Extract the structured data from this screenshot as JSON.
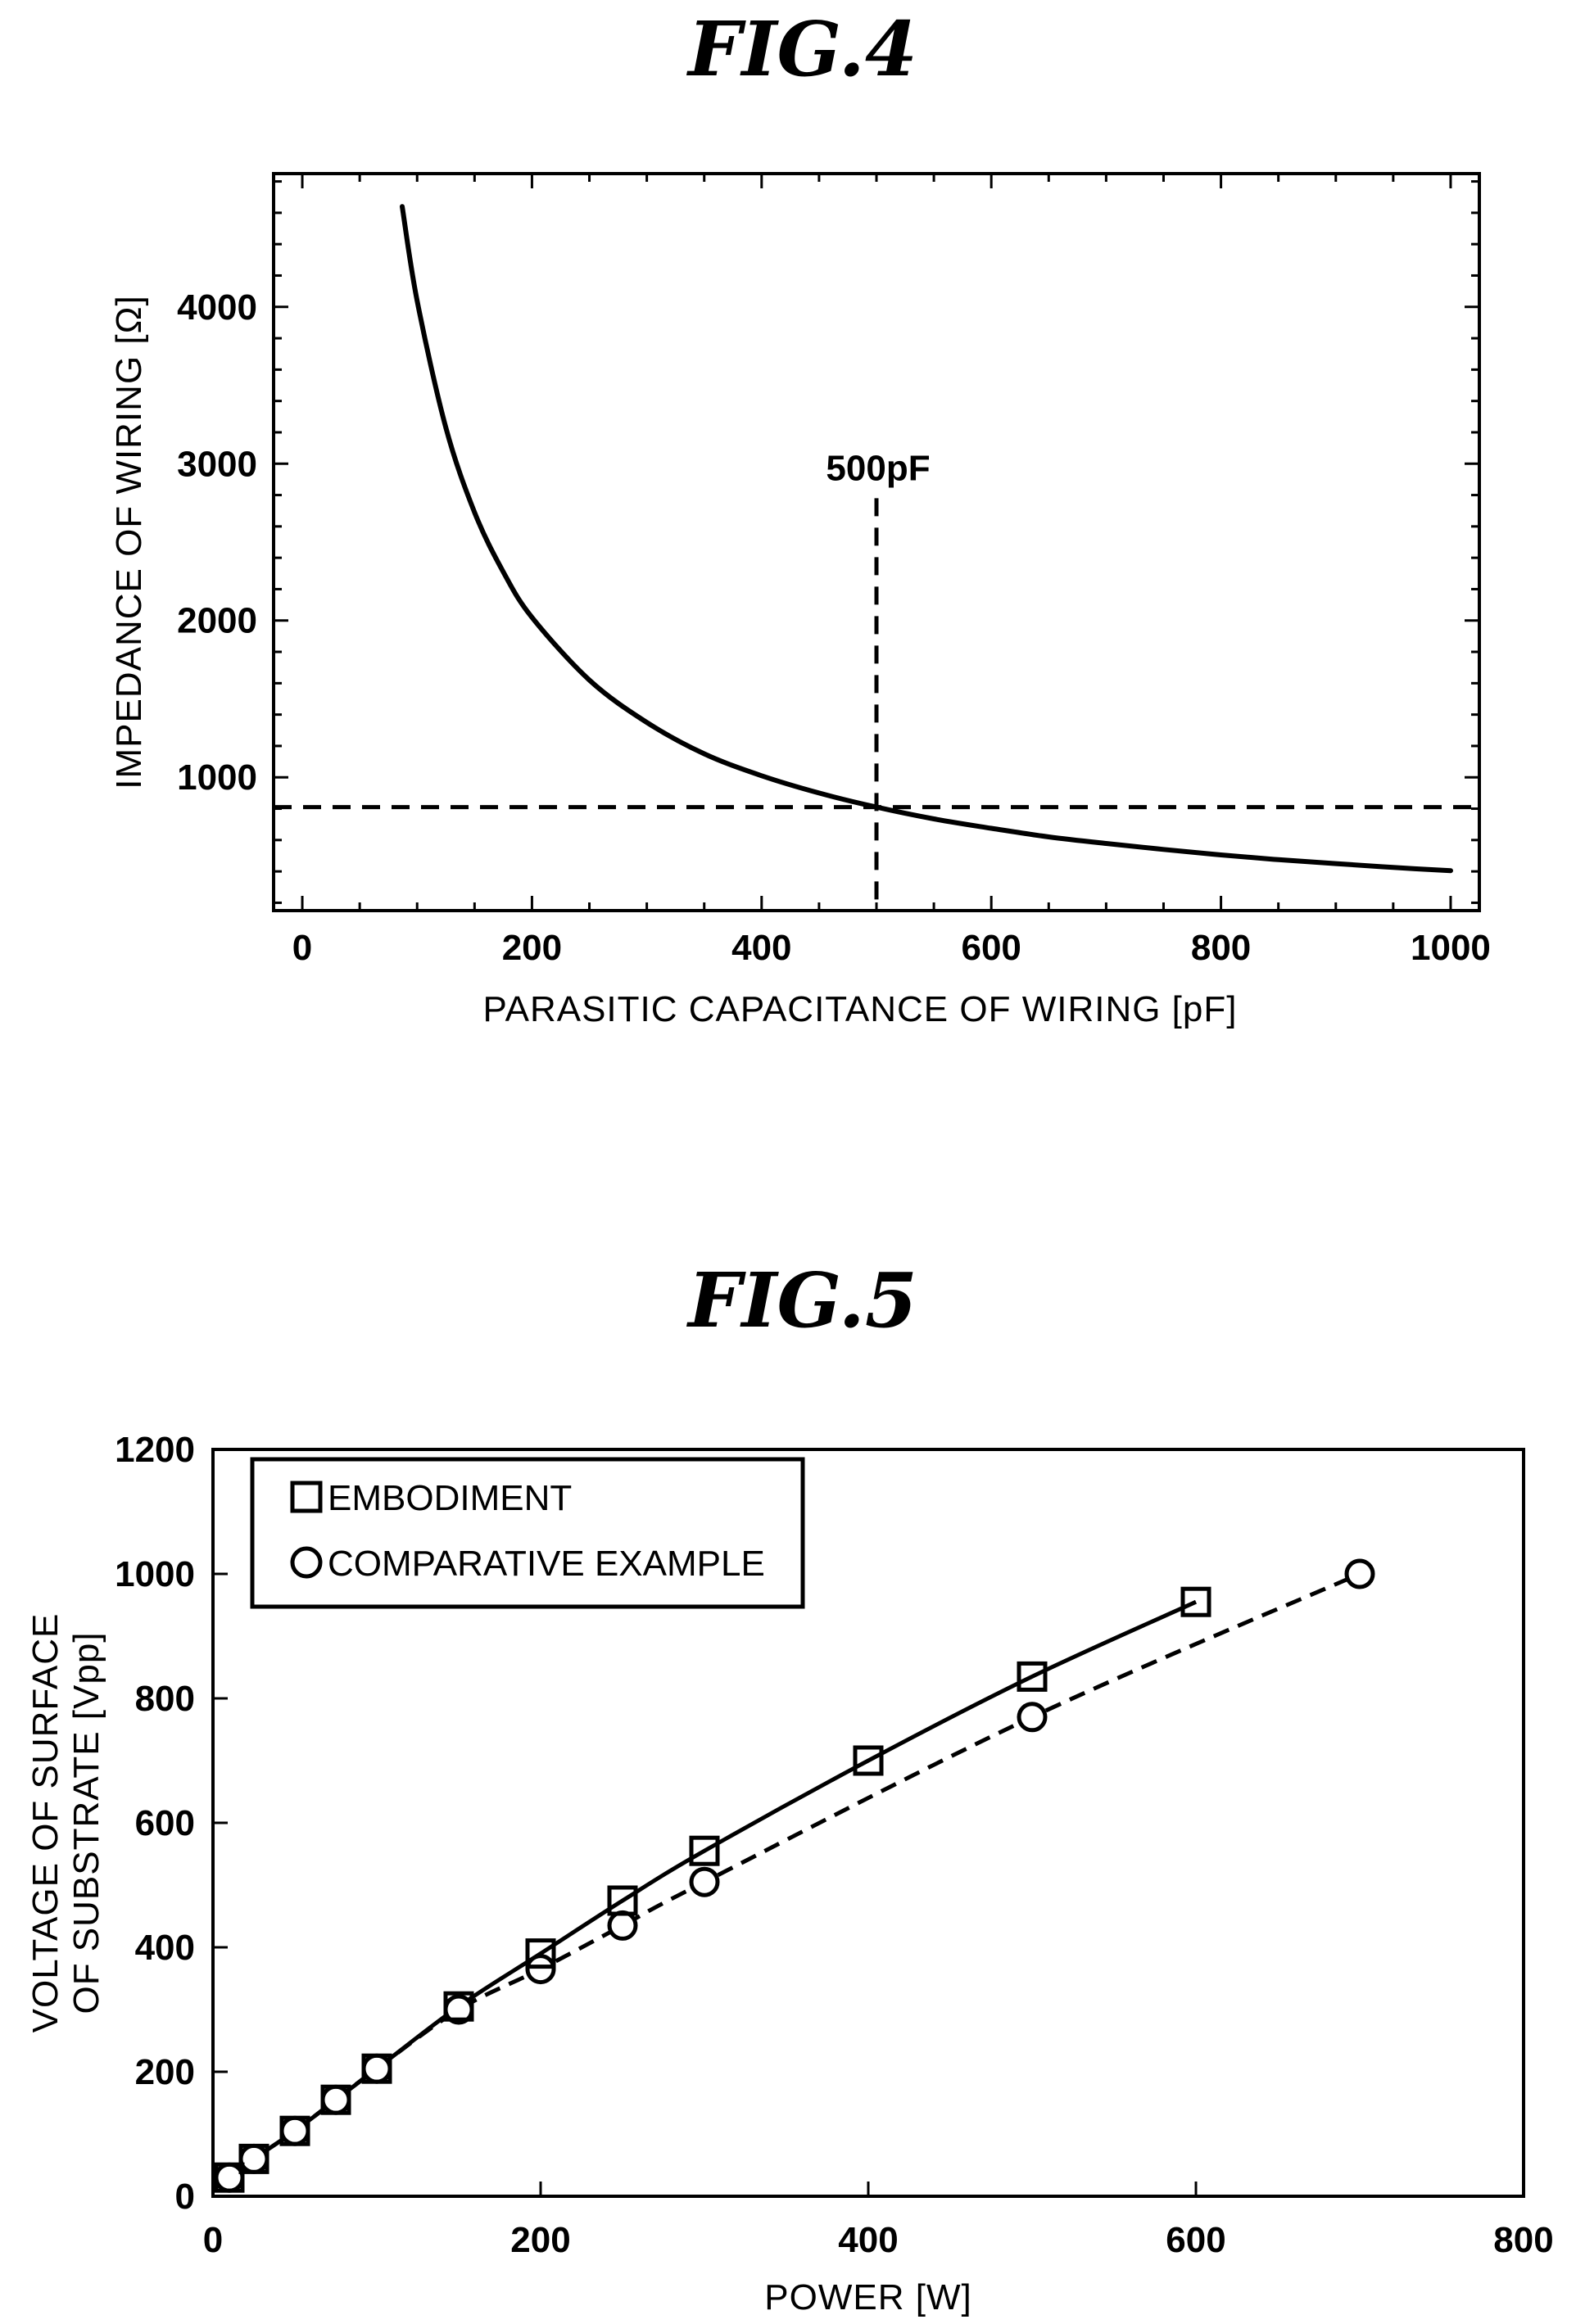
{
  "chart_data": [
    {
      "type": "line",
      "title": "FIG.4",
      "xlabel": "PARASITIC CAPACITANCE OF WIRING [pF]",
      "ylabel": "IMPEDANCE OF WIRING [Ω]",
      "xlim": [
        -25,
        1025
      ],
      "ylim": [
        150,
        4850
      ],
      "xticks": [
        0,
        200,
        400,
        600,
        800,
        1000
      ],
      "yticks": [
        1000,
        2000,
        3000,
        4000
      ],
      "grid": false,
      "series": [
        {
          "style": "solid",
          "x": [
            87,
            100,
            125,
            150,
            175,
            200,
            250,
            300,
            350,
            400,
            450,
            500,
            550,
            600,
            650,
            700,
            750,
            800,
            850,
            900,
            950,
            1000
          ],
          "y": [
            4640,
            4040,
            3230,
            2690,
            2310,
            2020,
            1620,
            1350,
            1150,
            1010,
            900,
            810,
            735,
            675,
            620,
            578,
            540,
            505,
            475,
            450,
            425,
            405
          ]
        }
      ],
      "reference_lines": [
        {
          "orientation": "vertical",
          "style": "dashed",
          "x": 500,
          "y_range": [
            150,
            2780
          ],
          "label": "500pF"
        },
        {
          "orientation": "horizontal",
          "style": "dashed",
          "y": 810
        }
      ]
    },
    {
      "type": "line",
      "title": "FIG.5",
      "xlabel": "POWER [W]",
      "ylabel": "VOLTAGE OF SURFACE OF SUBSTRATE [Vpp]",
      "ylabel_lines": [
        "VOLTAGE OF SURFACE",
        "OF SUBSTRATE [Vpp]"
      ],
      "xlim": [
        0,
        800
      ],
      "ylim": [
        0,
        1200
      ],
      "xticks": [
        0,
        200,
        400,
        600,
        800
      ],
      "yticks": [
        0,
        200,
        400,
        600,
        800,
        1000,
        1200
      ],
      "grid": false,
      "legend_position": "top-left",
      "series": [
        {
          "name": "EMBODIMENT",
          "marker": "square",
          "style": "solid",
          "x": [
            10,
            25,
            50,
            75,
            100,
            150,
            200,
            250,
            300,
            400,
            500,
            600
          ],
          "y": [
            30,
            60,
            105,
            155,
            205,
            305,
            390,
            475,
            555,
            700,
            835,
            955
          ]
        },
        {
          "name": "COMPARATIVE EXAMPLE",
          "marker": "circle",
          "style": "dashed",
          "x": [
            10,
            25,
            50,
            75,
            100,
            150,
            200,
            250,
            300,
            500,
            700
          ],
          "y": [
            30,
            60,
            105,
            155,
            205,
            300,
            365,
            435,
            505,
            770,
            1000
          ]
        }
      ]
    }
  ]
}
